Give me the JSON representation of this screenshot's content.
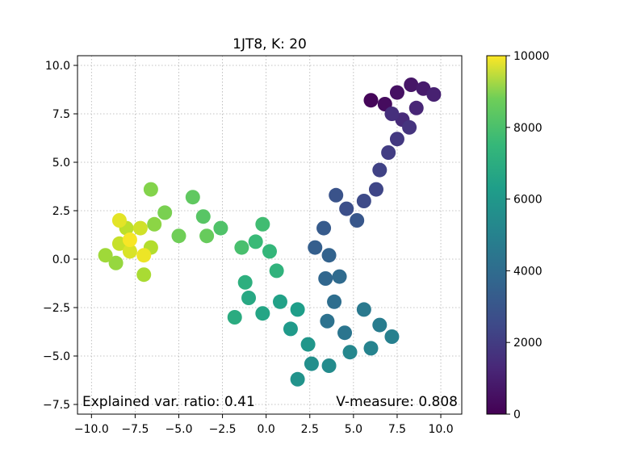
{
  "chart_data": {
    "type": "scatter",
    "title": "1JT8, K: 20",
    "xlabel": "",
    "ylabel": "",
    "xlim": [
      -10.8,
      11.2
    ],
    "ylim": [
      -8.0,
      10.5
    ],
    "xticks": [
      -10.0,
      -7.5,
      -5.0,
      -2.5,
      0.0,
      2.5,
      5.0,
      7.5,
      10.0
    ],
    "xtick_labels": [
      "−10.0",
      "−7.5",
      "−5.0",
      "−2.5",
      "0.0",
      "2.5",
      "5.0",
      "7.5",
      "10.0"
    ],
    "yticks": [
      -7.5,
      -5.0,
      -2.5,
      0.0,
      2.5,
      5.0,
      7.5,
      10.0
    ],
    "ytick_labels": [
      "−7.5",
      "−5.0",
      "−2.5",
      "0.0",
      "2.5",
      "5.0",
      "7.5",
      "10.0"
    ],
    "grid": true,
    "colormap": "viridis",
    "colorbar": {
      "range": [
        0,
        10000
      ],
      "ticks": [
        0,
        2000,
        4000,
        6000,
        8000,
        10000
      ],
      "tick_labels": [
        "0",
        "2000",
        "4000",
        "6000",
        "8000",
        "10000"
      ]
    },
    "points": [
      {
        "x": 6.0,
        "y": 8.2,
        "c": 150
      },
      {
        "x": 6.8,
        "y": 8.0,
        "c": 300
      },
      {
        "x": 7.5,
        "y": 8.6,
        "c": 450
      },
      {
        "x": 8.3,
        "y": 9.0,
        "c": 600
      },
      {
        "x": 9.0,
        "y": 8.8,
        "c": 750
      },
      {
        "x": 9.6,
        "y": 8.5,
        "c": 900
      },
      {
        "x": 8.6,
        "y": 7.8,
        "c": 1050
      },
      {
        "x": 7.8,
        "y": 7.2,
        "c": 1200
      },
      {
        "x": 7.2,
        "y": 7.5,
        "c": 1350
      },
      {
        "x": 8.2,
        "y": 6.8,
        "c": 1500
      },
      {
        "x": 7.5,
        "y": 6.2,
        "c": 1650
      },
      {
        "x": 7.0,
        "y": 5.5,
        "c": 1800
      },
      {
        "x": 6.5,
        "y": 4.6,
        "c": 1950
      },
      {
        "x": 6.3,
        "y": 3.6,
        "c": 2100
      },
      {
        "x": 5.6,
        "y": 3.0,
        "c": 2250
      },
      {
        "x": 4.6,
        "y": 2.6,
        "c": 2400
      },
      {
        "x": 4.0,
        "y": 3.3,
        "c": 2550
      },
      {
        "x": 5.2,
        "y": 2.0,
        "c": 2700
      },
      {
        "x": 3.3,
        "y": 1.6,
        "c": 2850
      },
      {
        "x": 2.8,
        "y": 0.6,
        "c": 3000
      },
      {
        "x": 3.6,
        "y": 0.2,
        "c": 3150
      },
      {
        "x": 3.4,
        "y": -1.0,
        "c": 3300
      },
      {
        "x": 4.2,
        "y": -0.9,
        "c": 3450
      },
      {
        "x": 3.9,
        "y": -2.2,
        "c": 3600
      },
      {
        "x": 3.5,
        "y": -3.2,
        "c": 3750
      },
      {
        "x": 4.5,
        "y": -3.8,
        "c": 3900
      },
      {
        "x": 5.6,
        "y": -2.6,
        "c": 4050
      },
      {
        "x": 6.5,
        "y": -3.4,
        "c": 4200
      },
      {
        "x": 7.2,
        "y": -4.0,
        "c": 4350
      },
      {
        "x": 6.0,
        "y": -4.6,
        "c": 4500
      },
      {
        "x": 4.8,
        "y": -4.8,
        "c": 4650
      },
      {
        "x": 3.6,
        "y": -5.5,
        "c": 4800
      },
      {
        "x": 2.6,
        "y": -5.4,
        "c": 4950
      },
      {
        "x": 1.8,
        "y": -6.2,
        "c": 5100
      },
      {
        "x": 2.4,
        "y": -4.4,
        "c": 5250
      },
      {
        "x": 1.4,
        "y": -3.6,
        "c": 5400
      },
      {
        "x": 1.8,
        "y": -2.6,
        "c": 5550
      },
      {
        "x": 0.8,
        "y": -2.2,
        "c": 5700
      },
      {
        "x": -0.2,
        "y": -2.8,
        "c": 5850
      },
      {
        "x": -1.0,
        "y": -2.0,
        "c": 6000
      },
      {
        "x": -1.8,
        "y": -3.0,
        "c": 6150
      },
      {
        "x": -1.2,
        "y": -1.2,
        "c": 6300
      },
      {
        "x": 0.6,
        "y": -0.6,
        "c": 6450
      },
      {
        "x": 0.2,
        "y": 0.4,
        "c": 6600
      },
      {
        "x": -0.6,
        "y": 0.9,
        "c": 6750
      },
      {
        "x": -0.2,
        "y": 1.8,
        "c": 6900
      },
      {
        "x": -1.4,
        "y": 0.6,
        "c": 7050
      },
      {
        "x": -2.6,
        "y": 1.6,
        "c": 7200
      },
      {
        "x": -3.6,
        "y": 2.2,
        "c": 7350
      },
      {
        "x": -4.2,
        "y": 3.2,
        "c": 7500
      },
      {
        "x": -3.4,
        "y": 1.2,
        "c": 7650
      },
      {
        "x": -5.0,
        "y": 1.2,
        "c": 7800
      },
      {
        "x": -5.8,
        "y": 2.4,
        "c": 7950
      },
      {
        "x": -6.6,
        "y": 3.6,
        "c": 8100
      },
      {
        "x": -6.4,
        "y": 1.8,
        "c": 8250
      },
      {
        "x": -8.6,
        "y": -0.2,
        "c": 8400
      },
      {
        "x": -9.2,
        "y": 0.2,
        "c": 8550
      },
      {
        "x": -7.0,
        "y": -0.8,
        "c": 8700
      },
      {
        "x": -6.6,
        "y": 0.6,
        "c": 8850
      },
      {
        "x": -8.0,
        "y": 1.6,
        "c": 9000
      },
      {
        "x": -8.4,
        "y": 0.8,
        "c": 9150
      },
      {
        "x": -7.2,
        "y": 1.6,
        "c": 9300
      },
      {
        "x": -7.8,
        "y": 0.4,
        "c": 9450
      },
      {
        "x": -8.4,
        "y": 2.0,
        "c": 9600
      },
      {
        "x": -7.0,
        "y": 0.2,
        "c": 9750
      },
      {
        "x": -7.8,
        "y": 1.0,
        "c": 9900
      }
    ],
    "annotations": {
      "left": "Explained var. ratio: 0.41",
      "right": "V-measure: 0.808"
    }
  }
}
